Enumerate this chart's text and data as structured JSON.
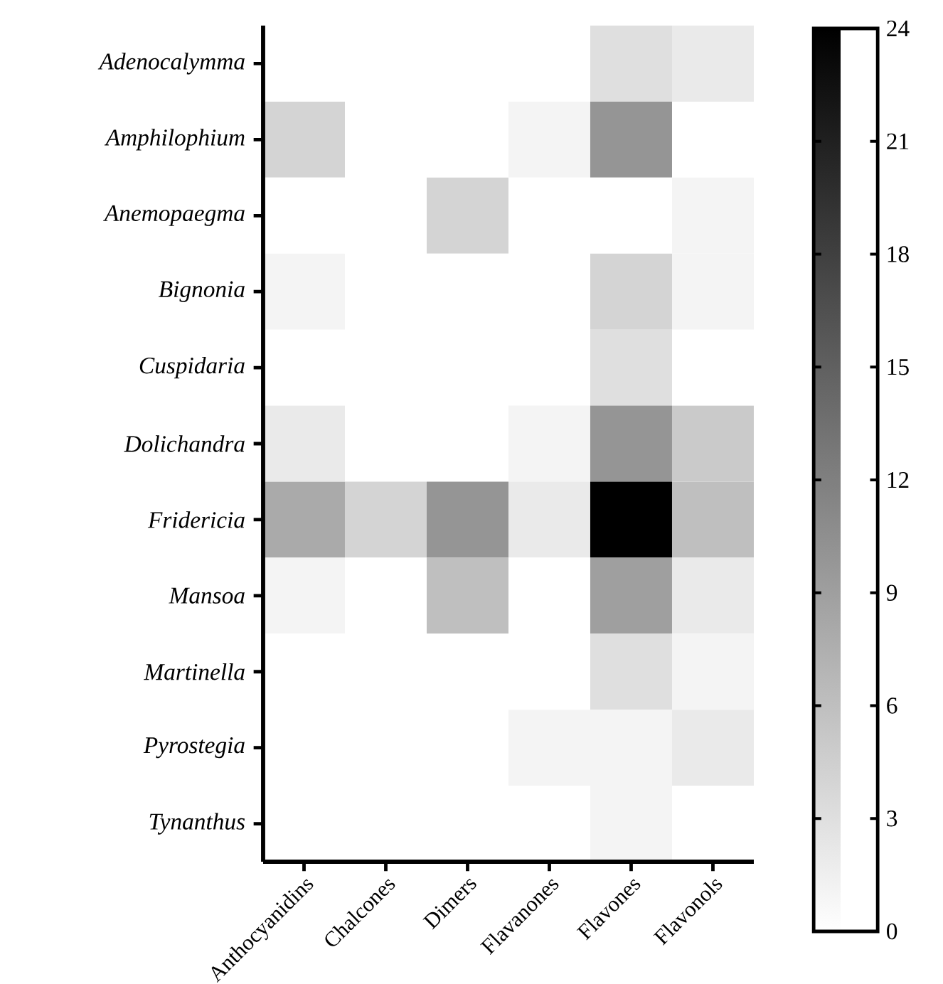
{
  "chart_data": {
    "type": "heatmap",
    "categories": [
      "Anthocyanidins",
      "Chalcones",
      "Dimers",
      "Flavanones",
      "Flavones",
      "Flavonols"
    ],
    "y_categories": [
      "Adenocalymma",
      "Amphilophium",
      "Anemopaegma",
      "Bignonia",
      "Cuspidaria",
      "Dolichandra",
      "Fridericia",
      "Mansoa",
      "Martinella",
      "Pyrostegia",
      "Tynanthus"
    ],
    "cells": [
      [
        0,
        0,
        0,
        0,
        3,
        2
      ],
      [
        4,
        0,
        0,
        1,
        10,
        0
      ],
      [
        0,
        0,
        4,
        0,
        0,
        1
      ],
      [
        1,
        0,
        0,
        0,
        4,
        1
      ],
      [
        0,
        0,
        0,
        0,
        3,
        0
      ],
      [
        2,
        0,
        0,
        1,
        10,
        5
      ],
      [
        8,
        4,
        10,
        2,
        24,
        6
      ],
      [
        1,
        0,
        6,
        0,
        9,
        2
      ],
      [
        0,
        0,
        0,
        0,
        3,
        1
      ],
      [
        0,
        0,
        0,
        1,
        1,
        2
      ],
      [
        0,
        0,
        0,
        0,
        1,
        0
      ]
    ],
    "clim": [
      0,
      24
    ],
    "cticks": [
      0,
      3,
      6,
      9,
      12,
      15,
      18,
      21,
      24
    ]
  }
}
